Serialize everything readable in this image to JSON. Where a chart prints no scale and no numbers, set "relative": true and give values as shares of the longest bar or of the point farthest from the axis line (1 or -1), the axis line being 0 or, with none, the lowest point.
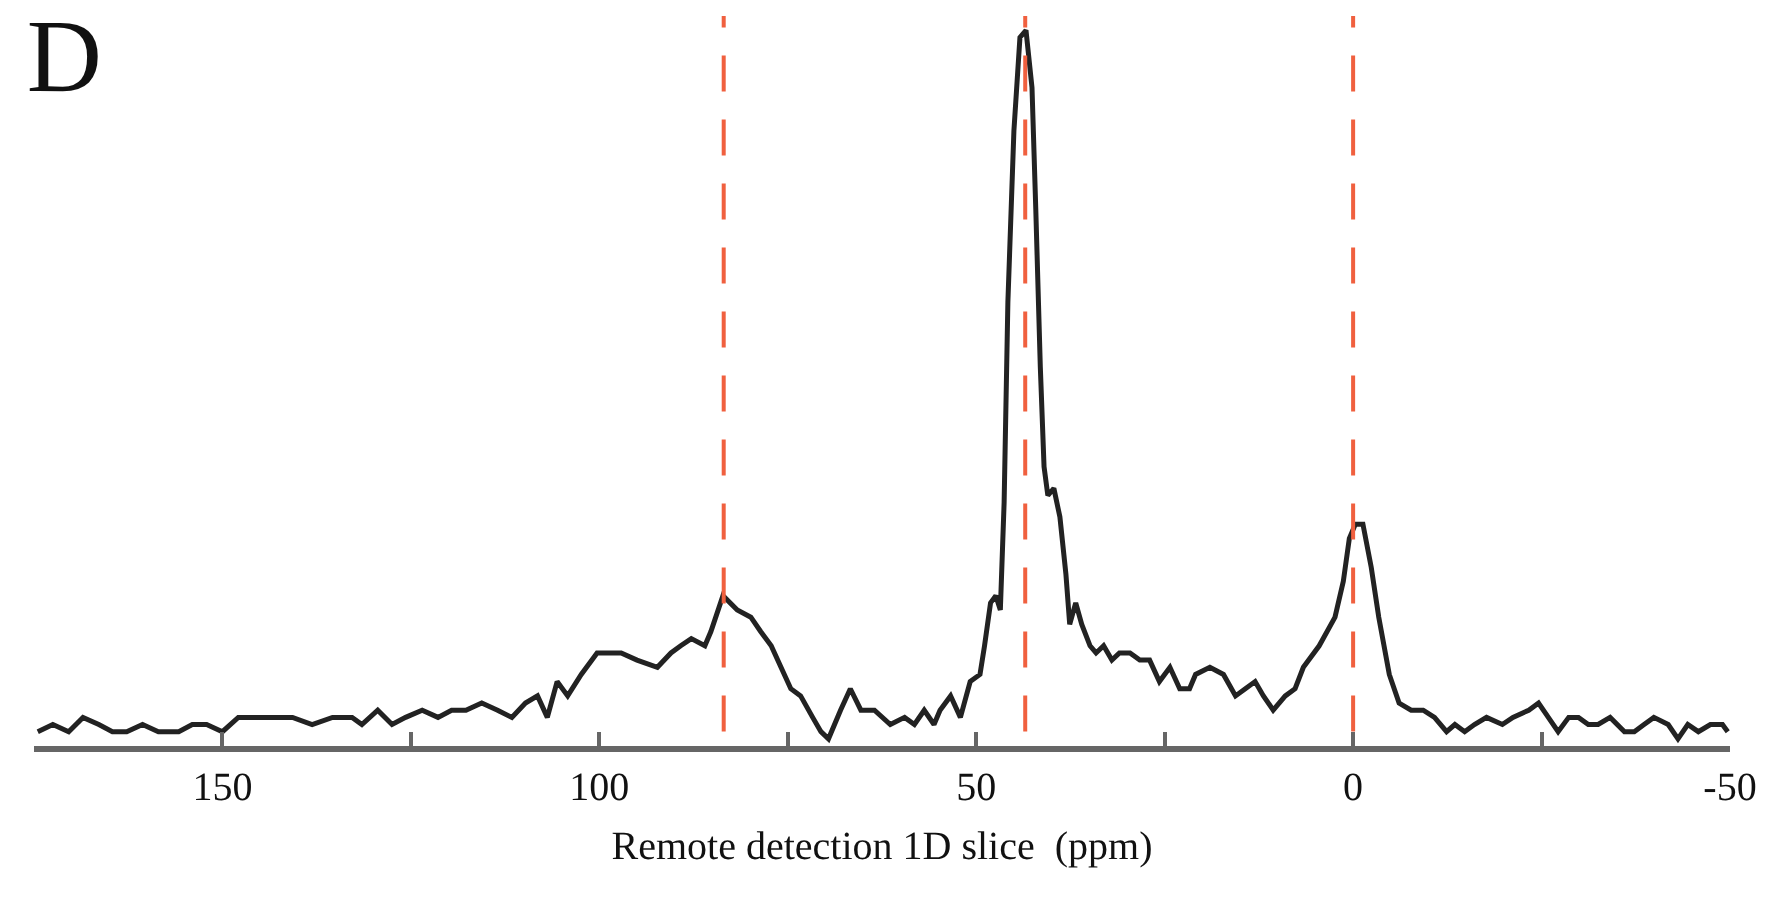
{
  "chart_data": {
    "type": "line",
    "title": "D",
    "xlabel": "Remote detection 1D slice  (ppm)",
    "relative": true,
    "tick_labels": "x",
    "grid": false,
    "marker": "none",
    "line_style": "solid",
    "xlim": [
      175,
      -50
    ],
    "xticks": [
      150,
      {
        "value": 125,
        "label": null
      },
      100,
      {
        "value": 75,
        "label": null
      },
      50,
      {
        "value": 25,
        "label": null
      },
      0,
      {
        "value": -25,
        "label": null
      },
      -50
    ],
    "x": [
      174.5,
      172.5,
      170.4,
      168.5,
      166.4,
      164.6,
      162.7,
      160.6,
      158.5,
      155.8,
      154.0,
      152.1,
      150.0,
      147.9,
      146.0,
      143.4,
      140.7,
      138.1,
      135.4,
      132.8,
      131.5,
      129.4,
      127.5,
      125.7,
      123.5,
      121.4,
      119.6,
      117.7,
      115.6,
      113.5,
      111.6,
      109.8,
      108.2,
      106.9,
      105.6,
      104.2,
      102.4,
      100.3,
      97.1,
      95.0,
      92.3,
      90.5,
      89.2,
      87.8,
      86.0,
      85.2,
      83.6,
      81.7,
      79.9,
      78.6,
      77.2,
      75.9,
      74.6,
      73.3,
      71.7,
      70.6,
      69.6,
      68.0,
      66.7,
      65.3,
      63.5,
      61.4,
      59.5,
      58.2,
      56.9,
      55.6,
      54.8,
      53.4,
      52.1,
      50.8,
      49.5,
      48.9,
      48.1,
      47.4,
      46.8,
      46.3,
      45.8,
      45.0,
      44.2,
      43.4,
      42.6,
      42.1,
      41.5,
      41.0,
      40.5,
      39.7,
      38.9,
      38.1,
      37.6,
      36.8,
      36.0,
      34.9,
      34.1,
      33.1,
      32.0,
      31.0,
      29.6,
      28.3,
      27.0,
      25.7,
      24.3,
      23.0,
      21.7,
      20.9,
      19.0,
      17.2,
      15.6,
      14.3,
      13.0,
      11.9,
      10.6,
      9.0,
      7.7,
      6.6,
      4.5,
      2.4,
      1.3,
      0.5,
      -0.3,
      -1.3,
      -2.4,
      -3.4,
      -4.8,
      -6.1,
      -7.7,
      -9.3,
      -10.8,
      -12.4,
      -13.5,
      -14.8,
      -16.1,
      -17.7,
      -19.8,
      -21.2,
      -23.3,
      -24.6,
      -25.9,
      -27.2,
      -28.6,
      -29.9,
      -31.2,
      -32.5,
      -34.1,
      -36.0,
      -37.3,
      -38.6,
      -39.9,
      -41.8,
      -43.1,
      -44.4,
      -45.8,
      -47.4,
      -49.0,
      -49.7
    ],
    "series": [
      {
        "color": "#222222",
        "values": [
          0.02,
          0.03,
          0.02,
          0.04,
          0.03,
          0.02,
          0.02,
          0.03,
          0.02,
          0.02,
          0.03,
          0.03,
          0.02,
          0.04,
          0.04,
          0.04,
          0.04,
          0.03,
          0.04,
          0.04,
          0.03,
          0.05,
          0.03,
          0.04,
          0.05,
          0.04,
          0.05,
          0.05,
          0.06,
          0.05,
          0.04,
          0.06,
          0.07,
          0.04,
          0.09,
          0.07,
          0.1,
          0.13,
          0.13,
          0.12,
          0.11,
          0.13,
          0.14,
          0.15,
          0.14,
          0.16,
          0.21,
          0.19,
          0.18,
          0.16,
          0.14,
          0.11,
          0.08,
          0.07,
          0.04,
          0.02,
          0.01,
          0.05,
          0.08,
          0.05,
          0.05,
          0.03,
          0.04,
          0.03,
          0.05,
          0.03,
          0.05,
          0.07,
          0.04,
          0.09,
          0.1,
          0.14,
          0.2,
          0.21,
          0.19,
          0.34,
          0.62,
          0.86,
          0.99,
          1,
          0.92,
          0.75,
          0.53,
          0.39,
          0.35,
          0.36,
          0.32,
          0.24,
          0.17,
          0.2,
          0.17,
          0.14,
          0.13,
          0.14,
          0.12,
          0.13,
          0.13,
          0.12,
          0.12,
          0.09,
          0.11,
          0.08,
          0.08,
          0.1,
          0.11,
          0.1,
          0.07,
          0.08,
          0.09,
          0.07,
          0.05,
          0.07,
          0.08,
          0.11,
          0.14,
          0.18,
          0.23,
          0.29,
          0.31,
          0.31,
          0.25,
          0.18,
          0.1,
          0.06,
          0.05,
          0.05,
          0.04,
          0.02,
          0.03,
          0.02,
          0.03,
          0.04,
          0.03,
          0.04,
          0.05,
          0.06,
          0.04,
          0.02,
          0.04,
          0.04,
          0.03,
          0.03,
          0.04,
          0.02,
          0.02,
          0.03,
          0.04,
          0.03,
          0.01,
          0.03,
          0.02,
          0.03,
          0.03,
          0.02
        ]
      }
    ],
    "ref_lines": [
      {
        "axis": "x",
        "value": 83.5,
        "color": "#f0603f",
        "line_style": "dashed"
      },
      {
        "axis": "x",
        "value": 43.5,
        "color": "#f0603f",
        "line_style": "dashed"
      },
      {
        "axis": "x",
        "value": 0,
        "color": "#f0603f",
        "line_style": "dashed"
      }
    ]
  }
}
